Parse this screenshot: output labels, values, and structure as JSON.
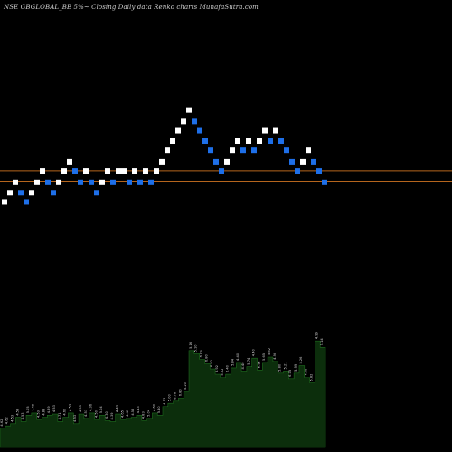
{
  "header": {
    "title": "NSE GBGLOBAL_BE 5%~ Closing Daily data Renko charts MunafaSutra.com"
  },
  "chart_data": {
    "type": "renko",
    "box_colors": {
      "up": "#ffffff",
      "down": "#1e6fe8"
    },
    "reference_lines": {
      "color": "#b5651d",
      "values": [
        4.52,
        3.6
      ]
    },
    "bricks": [
      {
        "d": "up",
        "y": 1.8
      },
      {
        "d": "up",
        "y": 2.6
      },
      {
        "d": "up",
        "y": 3.5
      },
      {
        "d": "down",
        "y": 2.6
      },
      {
        "d": "down",
        "y": 1.8
      },
      {
        "d": "up",
        "y": 2.6
      },
      {
        "d": "up",
        "y": 3.5
      },
      {
        "d": "up",
        "y": 4.5
      },
      {
        "d": "down",
        "y": 3.5
      },
      {
        "d": "down",
        "y": 2.6
      },
      {
        "d": "up",
        "y": 3.5
      },
      {
        "d": "up",
        "y": 4.5
      },
      {
        "d": "up",
        "y": 5.3
      },
      {
        "d": "down",
        "y": 4.5
      },
      {
        "d": "down",
        "y": 3.5
      },
      {
        "d": "up",
        "y": 4.5
      },
      {
        "d": "down",
        "y": 3.5
      },
      {
        "d": "down",
        "y": 2.6
      },
      {
        "d": "up",
        "y": 3.5
      },
      {
        "d": "up",
        "y": 4.5
      },
      {
        "d": "down",
        "y": 3.5
      },
      {
        "d": "up",
        "y": 4.5
      },
      {
        "d": "up",
        "y": 4.5
      },
      {
        "d": "down",
        "y": 3.5
      },
      {
        "d": "up",
        "y": 4.5
      },
      {
        "d": "down",
        "y": 3.5
      },
      {
        "d": "up",
        "y": 4.5
      },
      {
        "d": "down",
        "y": 3.5
      },
      {
        "d": "up",
        "y": 4.5
      },
      {
        "d": "up",
        "y": 5.3
      },
      {
        "d": "up",
        "y": 6.3
      },
      {
        "d": "up",
        "y": 7.1
      },
      {
        "d": "up",
        "y": 8.0
      },
      {
        "d": "up",
        "y": 8.8
      },
      {
        "d": "up",
        "y": 9.8
      },
      {
        "d": "down",
        "y": 8.8
      },
      {
        "d": "down",
        "y": 8.0
      },
      {
        "d": "down",
        "y": 7.1
      },
      {
        "d": "down",
        "y": 6.3
      },
      {
        "d": "down",
        "y": 5.3
      },
      {
        "d": "down",
        "y": 4.5
      },
      {
        "d": "up",
        "y": 5.3
      },
      {
        "d": "up",
        "y": 6.3
      },
      {
        "d": "up",
        "y": 7.1
      },
      {
        "d": "down",
        "y": 6.3
      },
      {
        "d": "up",
        "y": 7.1
      },
      {
        "d": "down",
        "y": 6.3
      },
      {
        "d": "up",
        "y": 7.1
      },
      {
        "d": "up",
        "y": 8.0
      },
      {
        "d": "down",
        "y": 7.1
      },
      {
        "d": "up",
        "y": 8.0
      },
      {
        "d": "down",
        "y": 7.1
      },
      {
        "d": "down",
        "y": 6.3
      },
      {
        "d": "down",
        "y": 5.3
      },
      {
        "d": "down",
        "y": 4.5
      },
      {
        "d": "up",
        "y": 5.3
      },
      {
        "d": "up",
        "y": 6.3
      },
      {
        "d": "down",
        "y": 5.3
      },
      {
        "d": "down",
        "y": 4.5
      },
      {
        "d": "down",
        "y": 3.5
      }
    ],
    "volume_bars": [
      1.8,
      2.0,
      2.2,
      2.8,
      2.4,
      3.0,
      3.2,
      2.6,
      2.8,
      3.0,
      3.1,
      2.4,
      2.8,
      3.2,
      2.2,
      3.1,
      2.7,
      3.2,
      2.6,
      3.0,
      2.5,
      2.4,
      3.1,
      2.6,
      2.7,
      2.8,
      3.0,
      2.5,
      2.7,
      3.2,
      3.0,
      3.8,
      4.1,
      4.3,
      4.6,
      5.2,
      9.0,
      8.7,
      8.2,
      7.8,
      7.3,
      6.8,
      6.5,
      6.8,
      7.4,
      7.9,
      7.1,
      7.5,
      8.3,
      7.2,
      7.9,
      8.4,
      8.0,
      6.9,
      7.1,
      6.4,
      6.9,
      7.6,
      6.5,
      6.0,
      9.9,
      9.3
    ],
    "volume_labels": [
      "4.62",
      "4.62",
      "4.53",
      "4.53",
      "4.53",
      "5.05",
      "4.48",
      "4.53",
      "4.83",
      "4.39",
      "4.53",
      "4.71",
      "4.60",
      "4.53",
      "4.53",
      "4.53",
      "4.53",
      "4.36",
      "4.50",
      "5.04",
      "4.30",
      "4.39",
      "4.43",
      "4.65",
      "4.43",
      "4.53",
      "4.43",
      "4.83",
      "5.04",
      "4.60",
      "5.40",
      "4.53",
      "5.00",
      "8.78",
      "6.80",
      "5.20",
      "5.16",
      "5.10",
      "6.89",
      "6.80",
      "6.92",
      "5.92",
      "5.62",
      "6.40",
      "5.84",
      "4.40",
      "4.40",
      "5.74",
      "4.40",
      "5.15",
      "5.65",
      "5.82",
      "4.98",
      "5.80",
      "5.21",
      "6.05",
      "5.99",
      "5.26",
      "4.99",
      "5.82",
      "4.99",
      "5.14"
    ]
  }
}
